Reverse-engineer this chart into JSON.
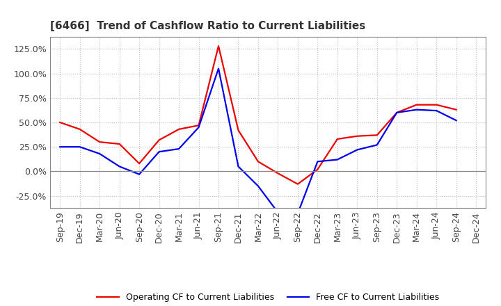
{
  "title": "[6466]  Trend of Cashflow Ratio to Current Liabilities",
  "x_labels": [
    "Sep-19",
    "Dec-19",
    "Mar-20",
    "Jun-20",
    "Sep-20",
    "Dec-20",
    "Mar-21",
    "Jun-21",
    "Sep-21",
    "Dec-21",
    "Mar-22",
    "Jun-22",
    "Sep-22",
    "Dec-22",
    "Mar-23",
    "Jun-23",
    "Sep-23",
    "Dec-23",
    "Mar-24",
    "Jun-24",
    "Sep-24",
    "Dec-24"
  ],
  "operating_cf": [
    0.5,
    0.43,
    0.3,
    0.28,
    0.08,
    0.32,
    0.43,
    0.47,
    1.28,
    0.42,
    0.1,
    -0.02,
    -0.13,
    0.02,
    0.33,
    0.36,
    0.37,
    0.6,
    0.68,
    0.68,
    0.63,
    null
  ],
  "free_cf": [
    0.25,
    0.25,
    0.18,
    0.05,
    -0.03,
    0.2,
    0.23,
    0.45,
    1.05,
    0.05,
    -0.15,
    -0.42,
    -0.43,
    0.1,
    0.12,
    0.22,
    0.27,
    0.6,
    0.63,
    0.62,
    0.52,
    null
  ],
  "operating_color": "#EE0000",
  "free_color": "#0000EE",
  "ylim": [
    -0.375,
    1.375
  ],
  "yticks": [
    -0.25,
    0.0,
    0.25,
    0.5,
    0.75,
    1.0,
    1.25
  ],
  "background_color": "#FFFFFF",
  "plot_bg_color": "#FFFFFF",
  "grid_color": "#BBBBBB",
  "title_fontsize": 11,
  "tick_fontsize": 9,
  "legend_fontsize": 9,
  "legend_label_operating": "Operating CF to Current Liabilities",
  "legend_label_free": "Free CF to Current Liabilities"
}
